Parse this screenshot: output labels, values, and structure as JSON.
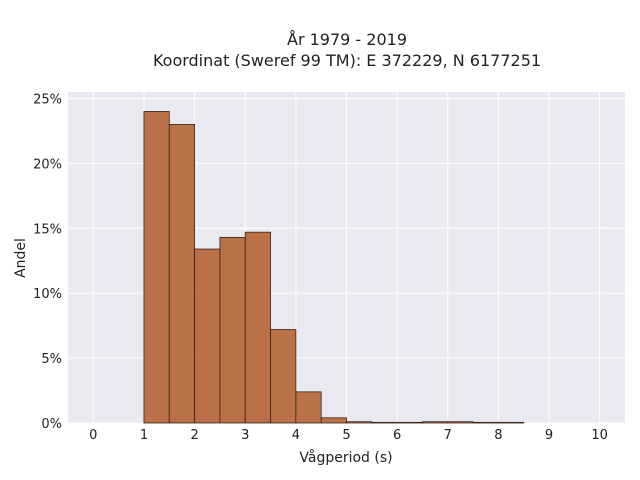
{
  "chart_data": {
    "type": "bar",
    "title": [
      "År 1979 - 2019",
      "Koordinat (Sweref 99 TM): E 372229, N 6177251"
    ],
    "xlabel": "Vågperiod (s)",
    "ylabel": "Andel",
    "xlim": [
      -0.5,
      10.5
    ],
    "ylim": [
      0,
      25.5
    ],
    "xticks": [
      0,
      1,
      2,
      3,
      4,
      5,
      6,
      7,
      8,
      9,
      10
    ],
    "yticks": [
      0,
      5,
      10,
      15,
      20,
      25
    ],
    "ytick_labels": [
      "0%",
      "5%",
      "10%",
      "15%",
      "20%",
      "25%"
    ],
    "bin_width": 0.5,
    "bins": [
      {
        "x0": 1.0,
        "value": 24.0
      },
      {
        "x0": 1.5,
        "value": 23.0
      },
      {
        "x0": 2.0,
        "value": 13.4
      },
      {
        "x0": 2.5,
        "value": 14.3
      },
      {
        "x0": 3.0,
        "value": 14.7
      },
      {
        "x0": 3.5,
        "value": 7.2
      },
      {
        "x0": 4.0,
        "value": 2.4
      },
      {
        "x0": 4.5,
        "value": 0.4
      },
      {
        "x0": 5.0,
        "value": 0.1
      },
      {
        "x0": 5.5,
        "value": 0.05
      },
      {
        "x0": 6.0,
        "value": 0.05
      },
      {
        "x0": 6.5,
        "value": 0.1
      },
      {
        "x0": 7.0,
        "value": 0.1
      },
      {
        "x0": 7.5,
        "value": 0.05
      },
      {
        "x0": 8.0,
        "value": 0.05
      }
    ],
    "grid": true,
    "colors": {
      "bar": "#b86a3e",
      "bar_edge": "#3a2418",
      "plot_bg": "#e9e9f1",
      "grid": "#ffffff"
    }
  }
}
